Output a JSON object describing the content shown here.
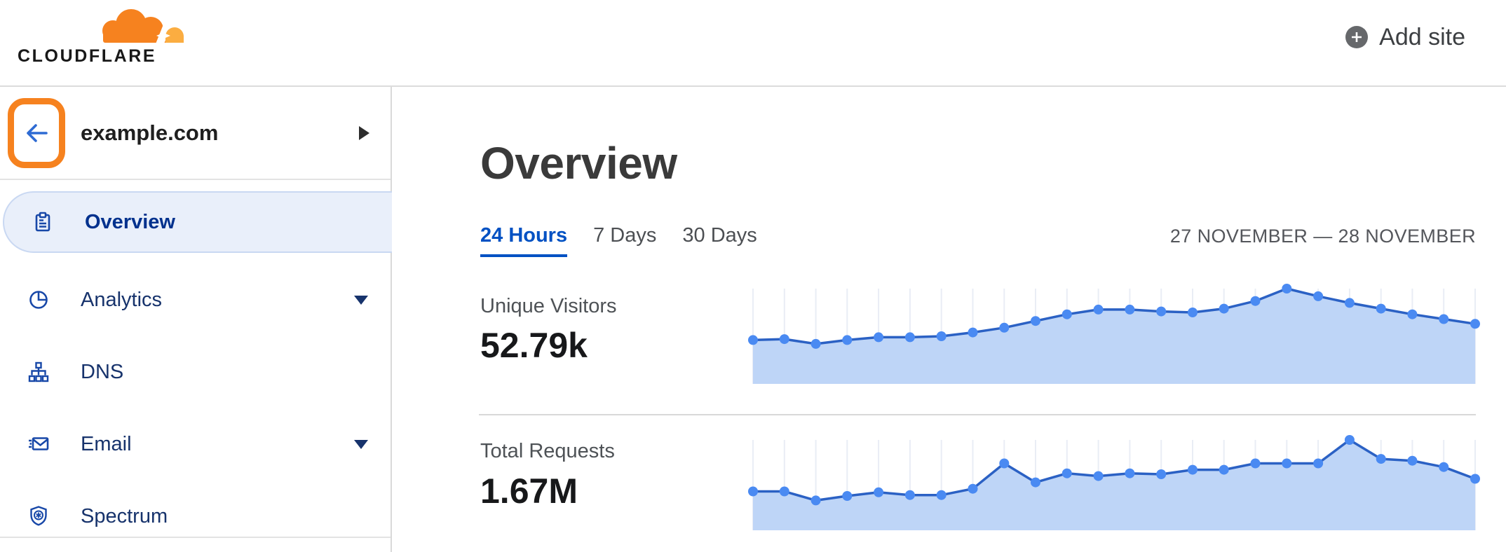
{
  "header": {
    "logo_text": "CLOUDFLARE",
    "add_site_label": "Add site"
  },
  "sidebar": {
    "site_name": "example.com",
    "items": [
      {
        "label": "Overview",
        "icon": "clipboard",
        "selected": true,
        "expandable": false
      },
      {
        "label": "Analytics",
        "icon": "pie-chart",
        "selected": false,
        "expandable": true
      },
      {
        "label": "DNS",
        "icon": "sitemap",
        "selected": false,
        "expandable": false
      },
      {
        "label": "Email",
        "icon": "envelope",
        "selected": false,
        "expandable": true
      },
      {
        "label": "Spectrum",
        "icon": "shield",
        "selected": false,
        "expandable": false
      }
    ]
  },
  "main": {
    "title": "Overview",
    "tabs": [
      {
        "label": "24 Hours",
        "selected": true
      },
      {
        "label": "7 Days",
        "selected": false
      },
      {
        "label": "30 Days",
        "selected": false
      }
    ],
    "date_range": "27 NOVEMBER — 28 NOVEMBER",
    "metrics": [
      {
        "label": "Unique Visitors",
        "value": "52.79k"
      },
      {
        "label": "Total Requests",
        "value": "1.67M"
      }
    ]
  },
  "colors": {
    "brand_orange": "#F6821F",
    "brand_orange_light": "#FBAD41",
    "link_blue": "#0051C3",
    "nav_navy": "#17336C",
    "nav_selected_navy": "#00318D",
    "selected_pill_bg": "#E9EFFA",
    "chart": {
      "line": "#2B61C4",
      "fill": "#BED5F7",
      "dot": "#4A8AF2",
      "grid": "#E9EDF5"
    }
  },
  "chart_data": [
    {
      "type": "area",
      "title": "Unique Visitors",
      "period": "24 Hours",
      "total_label": "52.79k",
      "x_points": 24,
      "values": [
        46,
        47,
        42,
        46,
        49,
        49,
        50,
        54,
        59,
        66,
        73,
        78,
        78,
        76,
        75,
        79,
        87,
        100,
        92,
        85,
        79,
        73,
        68,
        63
      ],
      "ylim": [
        0,
        100
      ],
      "y_unit": "relative height (no axis labels visible)",
      "grid": "vertical gridline at each point",
      "legend": false
    },
    {
      "type": "area",
      "title": "Total Requests",
      "period": "24 Hours",
      "total_label": "1.67M",
      "x_points": 24,
      "values": [
        43,
        43,
        33,
        38,
        42,
        39,
        39,
        46,
        74,
        53,
        63,
        60,
        63,
        62,
        67,
        67,
        74,
        74,
        74,
        100,
        79,
        77,
        70,
        57
      ],
      "ylim": [
        0,
        100
      ],
      "y_unit": "relative height (no axis labels visible)",
      "grid": "vertical gridline at each point",
      "legend": false
    }
  ]
}
